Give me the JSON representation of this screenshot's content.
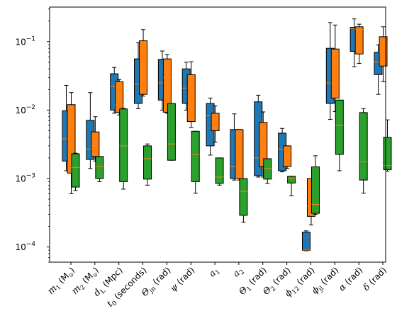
{
  "chart_data": {
    "type": "box",
    "y_scale": "log",
    "ylim": [
      6e-05,
      0.32
    ],
    "y_ticks": [
      {
        "value": 0.0001,
        "base": "10",
        "exp": "−4"
      },
      {
        "value": 0.001,
        "base": "10",
        "exp": "−3"
      },
      {
        "value": 0.01,
        "base": "10",
        "exp": "−2"
      },
      {
        "value": 0.1,
        "base": "10",
        "exp": "−1"
      }
    ],
    "categories": [
      {
        "main": "m",
        "sub": "1",
        "rest": " (M",
        "rest_sub": "⊙",
        "tail": ")"
      },
      {
        "main": "m",
        "sub": "2",
        "rest": " (M",
        "rest_sub": "⊙",
        "tail": ")"
      },
      {
        "main": "d",
        "sub": "L",
        "rest": " (Mpc)",
        "rest_sub": "",
        "tail": ""
      },
      {
        "main": "t",
        "sub": "0",
        "rest": " (seconds)",
        "rest_sub": "",
        "tail": ""
      },
      {
        "main": "Θ",
        "sub": "jn",
        "rest": " (rad)",
        "rest_sub": "",
        "tail": ""
      },
      {
        "main": "ψ",
        "sub": "",
        "rest": " (rad)",
        "rest_sub": "",
        "tail": ""
      },
      {
        "main": "a",
        "sub": "1",
        "rest": "",
        "rest_sub": "",
        "tail": ""
      },
      {
        "main": "a",
        "sub": "2",
        "rest": "",
        "rest_sub": "",
        "tail": ""
      },
      {
        "main": "Θ",
        "sub": "1",
        "rest": " (rad)",
        "rest_sub": "",
        "tail": ""
      },
      {
        "main": "Θ",
        "sub": "2",
        "rest": " (rad)",
        "rest_sub": "",
        "tail": ""
      },
      {
        "main": "ϕ",
        "sub": "12",
        "rest": " (rad)",
        "rest_sub": "",
        "tail": ""
      },
      {
        "main": "ϕ",
        "sub": "jl",
        "rest": " (rad)",
        "rest_sub": "",
        "tail": ""
      },
      {
        "main": "α",
        "sub": "",
        "rest": " (rad)",
        "rest_sub": "",
        "tail": ""
      },
      {
        "main": "δ",
        "sub": "",
        "rest": " (rad)",
        "rest_sub": "",
        "tail": ""
      }
    ],
    "series": [
      {
        "color": "#1f77b4",
        "median_color": "#ff7f0e",
        "boxes": [
          {
            "whislo": 0.0013,
            "q1": 0.0018,
            "med": 0.0038,
            "q3": 0.0098,
            "whishi": 0.023
          },
          {
            "whislo": 0.0014,
            "q1": 0.0019,
            "med": 0.0027,
            "q3": 0.0071,
            "whishi": 0.018
          },
          {
            "whislo": 0.009,
            "q1": 0.01,
            "med": 0.022,
            "q3": 0.034,
            "whishi": 0.042
          },
          {
            "whislo": 0.0105,
            "q1": 0.0125,
            "med": 0.024,
            "q3": 0.056,
            "whishi": 0.097
          },
          {
            "whislo": 0.01,
            "q1": 0.014,
            "med": 0.025,
            "q3": 0.055,
            "whishi": 0.073
          },
          {
            "whislo": 0.01,
            "q1": 0.0125,
            "med": 0.021,
            "q3": 0.04,
            "whishi": 0.05
          },
          {
            "whislo": 0.0022,
            "q1": 0.003,
            "med": 0.0083,
            "q3": 0.0125,
            "whishi": 0.015
          },
          {
            "whislo": 0.00095,
            "q1": 0.001,
            "med": 0.0015,
            "q3": 0.0052,
            "whishi": 0.0088
          },
          {
            "whislo": 0.00105,
            "q1": 0.0011,
            "med": 0.002,
            "q3": 0.0132,
            "whishi": 0.0165
          },
          {
            "whislo": 0.00125,
            "q1": 0.0013,
            "med": 0.0027,
            "q3": 0.0046,
            "whishi": 0.0054
          },
          {
            "whislo": 8.8e-05,
            "q1": 8.9e-05,
            "med": 9e-05,
            "q3": 0.000165,
            "whishi": 0.000172
          },
          {
            "whislo": 0.0073,
            "q1": 0.0125,
            "med": 0.025,
            "q3": 0.08,
            "whishi": 0.19
          },
          {
            "whislo": 0.043,
            "q1": 0.072,
            "med": 0.155,
            "q3": 0.162,
            "whishi": 0.215
          },
          {
            "whislo": 0.017,
            "q1": 0.033,
            "med": 0.05,
            "q3": 0.07,
            "whishi": 0.09
          }
        ]
      },
      {
        "color": "#ff7f0e",
        "median_color": "#ff7f0e",
        "boxes": [
          {
            "whislo": 0.0006,
            "q1": 0.0012,
            "med": 0.006,
            "q3": 0.012,
            "whishi": 0.018
          },
          {
            "whislo": 0.0018,
            "q1": 0.0021,
            "med": 0.003,
            "q3": 0.0048,
            "whishi": 0.008
          },
          {
            "whislo": 0.0085,
            "q1": 0.0093,
            "med": 0.012,
            "q3": 0.026,
            "whishi": 0.028
          },
          {
            "whislo": 0.016,
            "q1": 0.017,
            "med": 0.036,
            "q3": 0.103,
            "whishi": 0.15
          },
          {
            "whislo": 0.009,
            "q1": 0.0093,
            "med": 0.03,
            "q3": 0.056,
            "whishi": 0.065
          },
          {
            "whislo": 0.0056,
            "q1": 0.0068,
            "med": 0.016,
            "q3": 0.033,
            "whishi": 0.051
          },
          {
            "whislo": 0.0034,
            "q1": 0.005,
            "med": 0.0066,
            "q3": 0.009,
            "whishi": 0.0115
          },
          {
            "whislo": 0.00095,
            "q1": 0.001,
            "med": 0.0015,
            "q3": 0.0052,
            "whishi": 0.0052
          },
          {
            "whislo": 0.00105,
            "q1": 0.0015,
            "med": 0.004,
            "q3": 0.0066,
            "whishi": 0.0094
          },
          {
            "whislo": 0.0014,
            "q1": 0.0015,
            "med": 0.0026,
            "q3": 0.003,
            "whishi": 0.003
          },
          {
            "whislo": 0.00021,
            "q1": 0.00028,
            "med": 0.00039,
            "q3": 0.001,
            "whishi": 0.001
          },
          {
            "whislo": 0.0095,
            "q1": 0.015,
            "med": 0.024,
            "q3": 0.078,
            "whishi": 0.175
          },
          {
            "whislo": 0.048,
            "q1": 0.066,
            "med": 0.15,
            "q3": 0.165,
            "whishi": 0.18
          },
          {
            "whislo": 0.026,
            "q1": 0.044,
            "med": 0.07,
            "q3": 0.118,
            "whishi": 0.165
          }
        ]
      },
      {
        "color": "#2ca02c",
        "median_color": "#ff7f0e",
        "boxes": [
          {
            "whislo": 0.00067,
            "q1": 0.00075,
            "med": 0.00145,
            "q3": 0.0023,
            "whishi": 0.00235
          },
          {
            "whislo": 0.0009,
            "q1": 0.001,
            "med": 0.0015,
            "q3": 0.0021,
            "whishi": 0.0021
          },
          {
            "whislo": 0.0007,
            "q1": 0.0009,
            "med": 0.003,
            "q3": 0.0104,
            "whishi": 0.0106
          },
          {
            "whislo": 0.0008,
            "q1": 0.00098,
            "med": 0.00195,
            "q3": 0.003,
            "whishi": 0.0032
          },
          {
            "whislo": 0.00185,
            "q1": 0.00185,
            "med": 0.0032,
            "q3": 0.0125,
            "whishi": 0.0125
          },
          {
            "whislo": 0.00061,
            "q1": 0.0009,
            "med": 0.00225,
            "q3": 0.0049,
            "whishi": 0.0049
          },
          {
            "whislo": 0.0008,
            "q1": 0.00085,
            "med": 0.00105,
            "q3": 0.002,
            "whishi": 0.002
          },
          {
            "whislo": 0.00023,
            "q1": 0.00029,
            "med": 0.00065,
            "q3": 0.001,
            "whishi": 0.001
          },
          {
            "whislo": 0.00085,
            "q1": 0.00098,
            "med": 0.0014,
            "q3": 0.00195,
            "whishi": 0.00195
          },
          {
            "whislo": 0.00056,
            "q1": 0.00086,
            "med": 0.001,
            "q3": 0.00108,
            "whishi": 0.00108
          },
          {
            "whislo": 0.0003,
            "q1": 0.00031,
            "med": 0.00042,
            "q3": 0.00148,
            "whishi": 0.00215
          },
          {
            "whislo": 0.0013,
            "q1": 0.00225,
            "med": 0.006,
            "q3": 0.014,
            "whishi": 0.014
          },
          {
            "whislo": 0.00061,
            "q1": 0.00095,
            "med": 0.00175,
            "q3": 0.0092,
            "whishi": 0.0105
          },
          {
            "whislo": 0.00128,
            "q1": 0.00135,
            "med": 0.00155,
            "q3": 0.004,
            "whishi": 0.0072
          }
        ]
      }
    ],
    "grid": false,
    "legend": "none"
  }
}
